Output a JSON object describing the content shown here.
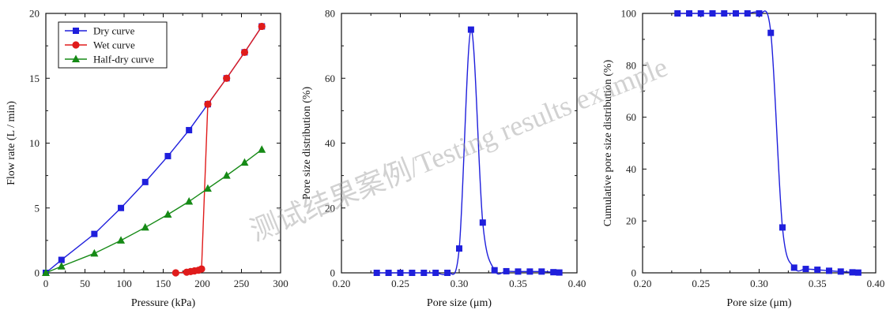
{
  "watermark": "测试结果案例/Testing results example",
  "chart_data": [
    {
      "type": "line",
      "xlabel": "Pressure (kPa)",
      "ylabel": "Flow rate (L / min)",
      "xlim": [
        0,
        300
      ],
      "ylim": [
        0,
        20
      ],
      "xticks": [
        "0",
        "50",
        "100",
        "150",
        "200",
        "250",
        "300"
      ],
      "yticks": [
        "0",
        "5",
        "10",
        "15",
        "20"
      ],
      "legend": "top-left",
      "series": [
        {
          "name": "Dry curve",
          "color": "#1f1fdc",
          "marker": "square",
          "x": [
            0,
            20,
            62,
            96,
            127,
            156,
            183,
            207,
            231,
            254,
            276
          ],
          "y": [
            0,
            1,
            3,
            5,
            7,
            9,
            11,
            13,
            15,
            17,
            19
          ]
        },
        {
          "name": "Wet curve",
          "color": "#e01b1b",
          "marker": "circle",
          "x": [
            166,
            180,
            185,
            190,
            195,
            199,
            207,
            231,
            254,
            276
          ],
          "y": [
            0,
            0.05,
            0.1,
            0.15,
            0.2,
            0.3,
            13,
            15,
            17,
            19
          ]
        },
        {
          "name": "Half-dry curve",
          "color": "#168a16",
          "marker": "triangle",
          "x": [
            0,
            20,
            62,
            96,
            127,
            156,
            183,
            207,
            231,
            254,
            276
          ],
          "y": [
            0,
            0.5,
            1.5,
            2.5,
            3.5,
            4.5,
            5.5,
            6.5,
            7.5,
            8.5,
            9.5
          ]
        }
      ]
    },
    {
      "type": "line",
      "xlabel": "Pore size (μm)",
      "ylabel": "Pore size distribution (%)",
      "xlim": [
        0.2,
        0.4
      ],
      "ylim": [
        0,
        80
      ],
      "xticks": [
        "0.20",
        "0.25",
        "0.30",
        "0.35",
        "0.40"
      ],
      "yticks": [
        "0",
        "20",
        "40",
        "60",
        "80"
      ],
      "series": [
        {
          "color": "#1f1fdc",
          "marker": "square",
          "x": [
            0.23,
            0.24,
            0.25,
            0.26,
            0.27,
            0.28,
            0.29,
            0.3,
            0.31,
            0.32,
            0.33,
            0.34,
            0.35,
            0.36,
            0.37,
            0.38,
            0.385
          ],
          "y": [
            0,
            0,
            0,
            0,
            0,
            0,
            0,
            7.5,
            75,
            15.5,
            0.8,
            0.5,
            0.4,
            0.4,
            0.4,
            0.2,
            0.1
          ]
        }
      ]
    },
    {
      "type": "line",
      "xlabel": "Pore size (μm)",
      "ylabel": "Cumulative pore size distribution (%)",
      "xlim": [
        0.2,
        0.4
      ],
      "ylim": [
        0,
        100
      ],
      "xticks": [
        "0.20",
        "0.25",
        "0.30",
        "0.35",
        "0.40"
      ],
      "yticks": [
        "0",
        "20",
        "40",
        "60",
        "80",
        "100"
      ],
      "series": [
        {
          "color": "#1f1fdc",
          "marker": "square",
          "x": [
            0.23,
            0.24,
            0.25,
            0.26,
            0.27,
            0.28,
            0.29,
            0.3,
            0.31,
            0.32,
            0.33,
            0.34,
            0.35,
            0.36,
            0.37,
            0.38,
            0.385
          ],
          "y": [
            100,
            100,
            100,
            100,
            100,
            100,
            100,
            100,
            92.5,
            17.5,
            2,
            1.5,
            1.2,
            0.8,
            0.5,
            0.2,
            0.1
          ]
        }
      ]
    }
  ]
}
